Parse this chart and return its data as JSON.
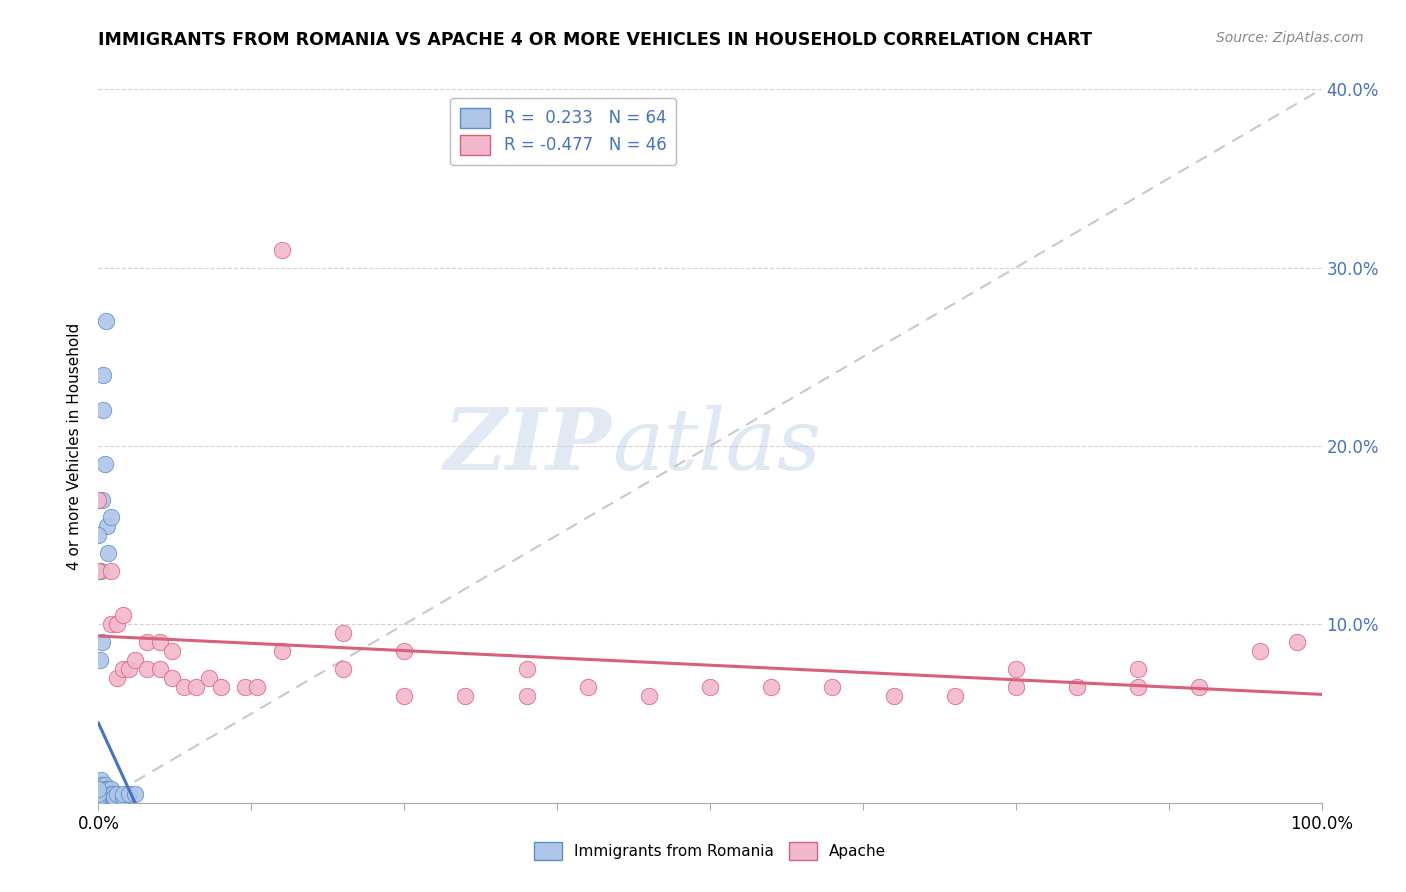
{
  "title": "IMMIGRANTS FROM ROMANIA VS APACHE 4 OR MORE VEHICLES IN HOUSEHOLD CORRELATION CHART",
  "source": "Source: ZipAtlas.com",
  "ylabel": "4 or more Vehicles in Household",
  "legend_blue_r": "0.233",
  "legend_blue_n": "64",
  "legend_pink_r": "-0.477",
  "legend_pink_n": "46",
  "legend_label_blue": "Immigrants from Romania",
  "legend_label_pink": "Apache",
  "blue_color": "#aec6e8",
  "pink_color": "#f2b8cb",
  "blue_edge_color": "#5b8ec4",
  "pink_edge_color": "#d9607a",
  "blue_line_color": "#4472c4",
  "pink_line_color": "#d9607a",
  "diagonal_color": "#bbbbbb",
  "text_color_blue": "#4472c4",
  "watermark_zip": "ZIP",
  "watermark_atlas": "atlas",
  "blue_points": [
    [
      0.001,
      0.0
    ],
    [
      0.001,
      0.005
    ],
    [
      0.001,
      0.008
    ],
    [
      0.001,
      0.01
    ],
    [
      0.002,
      0.0
    ],
    [
      0.002,
      0.003
    ],
    [
      0.002,
      0.005
    ],
    [
      0.002,
      0.008
    ],
    [
      0.002,
      0.01
    ],
    [
      0.002,
      0.013
    ],
    [
      0.003,
      0.0
    ],
    [
      0.003,
      0.003
    ],
    [
      0.003,
      0.005
    ],
    [
      0.003,
      0.008
    ],
    [
      0.003,
      0.01
    ],
    [
      0.004,
      0.0
    ],
    [
      0.004,
      0.003
    ],
    [
      0.004,
      0.005
    ],
    [
      0.004,
      0.008
    ],
    [
      0.005,
      0.0
    ],
    [
      0.005,
      0.003
    ],
    [
      0.005,
      0.005
    ],
    [
      0.005,
      0.008
    ],
    [
      0.005,
      0.01
    ],
    [
      0.006,
      0.003
    ],
    [
      0.006,
      0.005
    ],
    [
      0.006,
      0.008
    ],
    [
      0.007,
      0.003
    ],
    [
      0.007,
      0.005
    ],
    [
      0.007,
      0.008
    ],
    [
      0.008,
      0.003
    ],
    [
      0.008,
      0.005
    ],
    [
      0.008,
      0.008
    ],
    [
      0.009,
      0.003
    ],
    [
      0.009,
      0.005
    ],
    [
      0.01,
      0.003
    ],
    [
      0.01,
      0.005
    ],
    [
      0.01,
      0.008
    ],
    [
      0.011,
      0.003
    ],
    [
      0.011,
      0.005
    ],
    [
      0.012,
      0.003
    ],
    [
      0.012,
      0.005
    ],
    [
      0.013,
      0.003
    ],
    [
      0.015,
      0.005
    ],
    [
      0.02,
      0.003
    ],
    [
      0.02,
      0.005
    ],
    [
      0.025,
      0.005
    ],
    [
      0.03,
      0.005
    ],
    [
      0.0,
      0.0
    ],
    [
      0.0,
      0.003
    ],
    [
      0.0,
      0.005
    ],
    [
      0.0,
      0.008
    ],
    [
      0.001,
      0.08
    ],
    [
      0.002,
      0.13
    ],
    [
      0.003,
      0.09
    ],
    [
      0.003,
      0.17
    ],
    [
      0.004,
      0.22
    ],
    [
      0.004,
      0.24
    ],
    [
      0.005,
      0.19
    ],
    [
      0.006,
      0.27
    ],
    [
      0.007,
      0.155
    ],
    [
      0.008,
      0.14
    ],
    [
      0.01,
      0.16
    ],
    [
      0.0,
      0.15
    ]
  ],
  "pink_points": [
    [
      0.0,
      0.13
    ],
    [
      0.0,
      0.17
    ],
    [
      0.01,
      0.1
    ],
    [
      0.01,
      0.13
    ],
    [
      0.015,
      0.07
    ],
    [
      0.015,
      0.1
    ],
    [
      0.02,
      0.075
    ],
    [
      0.02,
      0.105
    ],
    [
      0.025,
      0.075
    ],
    [
      0.03,
      0.08
    ],
    [
      0.04,
      0.075
    ],
    [
      0.04,
      0.09
    ],
    [
      0.05,
      0.075
    ],
    [
      0.05,
      0.09
    ],
    [
      0.06,
      0.07
    ],
    [
      0.06,
      0.085
    ],
    [
      0.07,
      0.065
    ],
    [
      0.08,
      0.065
    ],
    [
      0.09,
      0.07
    ],
    [
      0.1,
      0.065
    ],
    [
      0.12,
      0.065
    ],
    [
      0.13,
      0.065
    ],
    [
      0.15,
      0.085
    ],
    [
      0.15,
      0.31
    ],
    [
      0.2,
      0.075
    ],
    [
      0.2,
      0.095
    ],
    [
      0.25,
      0.06
    ],
    [
      0.25,
      0.085
    ],
    [
      0.3,
      0.06
    ],
    [
      0.35,
      0.06
    ],
    [
      0.35,
      0.075
    ],
    [
      0.4,
      0.065
    ],
    [
      0.45,
      0.06
    ],
    [
      0.5,
      0.065
    ],
    [
      0.55,
      0.065
    ],
    [
      0.6,
      0.065
    ],
    [
      0.65,
      0.06
    ],
    [
      0.7,
      0.06
    ],
    [
      0.75,
      0.065
    ],
    [
      0.75,
      0.075
    ],
    [
      0.8,
      0.065
    ],
    [
      0.85,
      0.065
    ],
    [
      0.85,
      0.075
    ],
    [
      0.9,
      0.065
    ],
    [
      0.95,
      0.085
    ],
    [
      0.98,
      0.09
    ]
  ]
}
